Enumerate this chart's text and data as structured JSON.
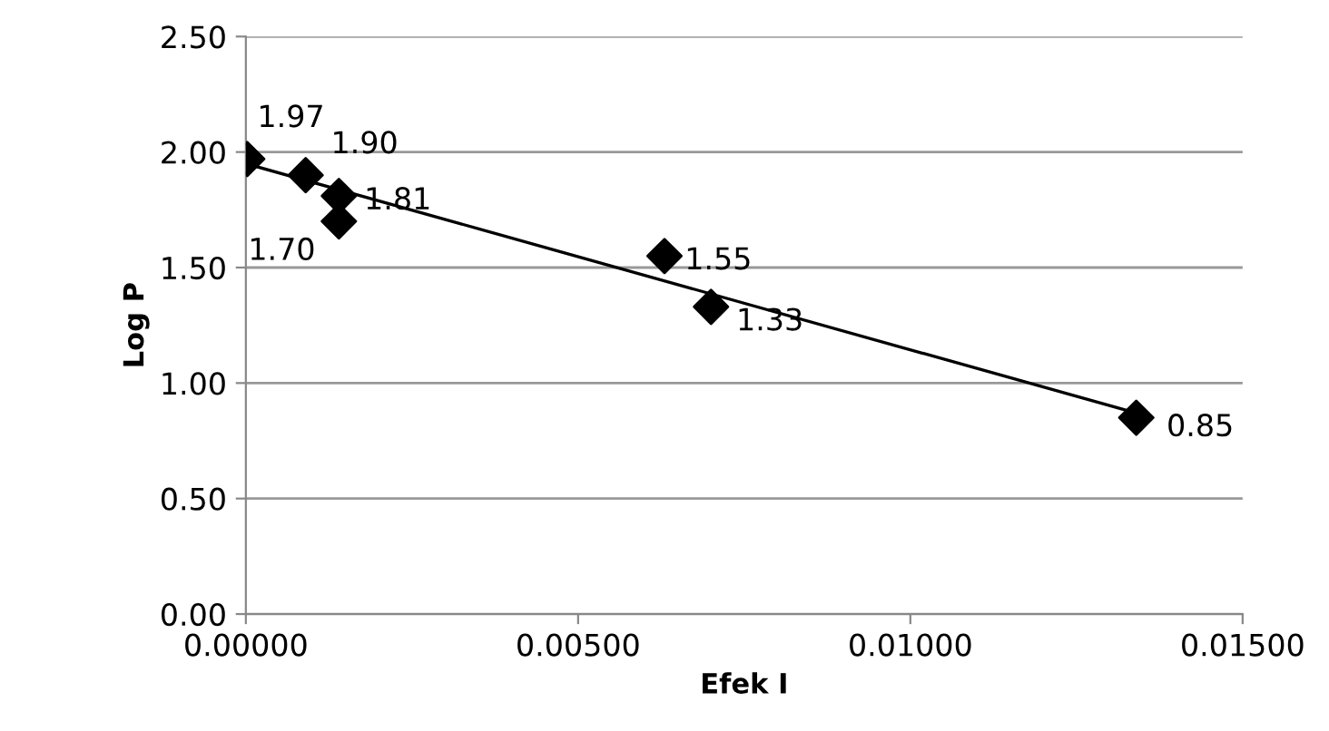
{
  "chart_data": {
    "type": "scatter",
    "xlabel": "Efek I",
    "ylabel": "Log P",
    "xlim": [
      0,
      0.015
    ],
    "xticks": [
      {
        "value": 0,
        "label": "0.00000"
      },
      {
        "value": 0.005,
        "label": "0.00500"
      },
      {
        "value": 0.01,
        "label": "0.01000"
      },
      {
        "value": 0.015,
        "label": "0.01500"
      }
    ],
    "ylim": [
      0,
      2.5
    ],
    "yticks": [
      {
        "value": 0,
        "label": "0.00"
      },
      {
        "value": 0.5,
        "label": "0.50"
      },
      {
        "value": 1,
        "label": "1.00"
      },
      {
        "value": 1.5,
        "label": "1.50"
      },
      {
        "value": 2,
        "label": "2.00"
      },
      {
        "value": 2.5,
        "label": "2.50"
      }
    ],
    "grid": "y",
    "legend": false,
    "series": [
      {
        "type": "scatter",
        "color": "#000000",
        "marker": "diamond",
        "x": [
          2e-05,
          0.0009,
          0.0014,
          0.0014,
          0.0063,
          0.007,
          0.0134
        ],
        "values": [
          1.97,
          1.9,
          1.81,
          1.7,
          1.55,
          1.33,
          0.85
        ],
        "value_labels": [
          "1.97",
          "1.90",
          "1.81",
          "1.70",
          "1.55",
          "1.33",
          "0.85"
        ]
      },
      {
        "type": "line",
        "color": "#000000",
        "marker": "none",
        "line_style": "solid",
        "x": [
          0,
          0.0134
        ],
        "values": [
          1.95,
          0.87
        ]
      }
    ]
  }
}
